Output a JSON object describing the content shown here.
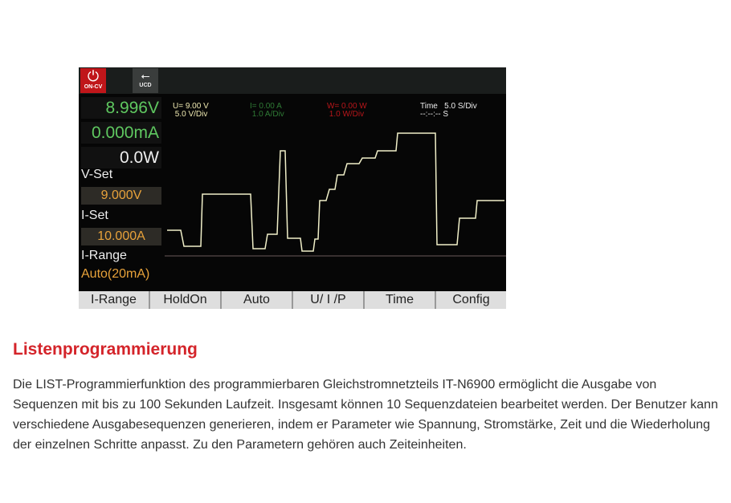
{
  "display": {
    "power": {
      "icon": "power-icon",
      "label": "ON-CV"
    },
    "usb": {
      "icon": "usb-icon",
      "label": "UCD"
    },
    "voltage": "8.996V",
    "current": "0.000mA",
    "power_reading": "0.0W",
    "vset_label": "V-Set",
    "vset": "9.000V",
    "iset_label": "I-Set",
    "iset": "10.000A",
    "irange_label": "I-Range",
    "irange": "Auto(20mA)",
    "u_info": "U= 9.00 V\n 5.0 V/Div",
    "i_info": "I= 0.00 A\n 1.0 A/Div",
    "w_info": "W= 0.00 W\n 1.0 W/Div",
    "time_info": "Time   5.0 S/Div\n--:--:-- S",
    "colors": {
      "voltage": "#5fc860",
      "trace": "#f0efc8",
      "current": "#3a9a3a",
      "power": "#d02020",
      "setpoint": "#e8a23a"
    },
    "softkeys": [
      "I-Range",
      "HoldOn",
      "Auto",
      "U/ I /P",
      "Time",
      "Config"
    ]
  },
  "article": {
    "title": "Listenprogrammierung",
    "body": "Die LIST-Programmierfunktion des programmierbaren Gleichstromnetzteils IT-N6900 ermöglicht die Ausgabe von Sequenzen mit bis zu 100 Sekunden Laufzeit. Insgesamt können 10 Sequenzdateien bearbeitet werden. Der Benutzer kann verschiedene Ausgabesequenzen generieren, indem er Parameter wie Spannung, Stromstärke, Zeit und die Wiederholung der einzelnen Schritte anpasst. Zu den Parametern gehören auch Zeiteinheiten."
  }
}
